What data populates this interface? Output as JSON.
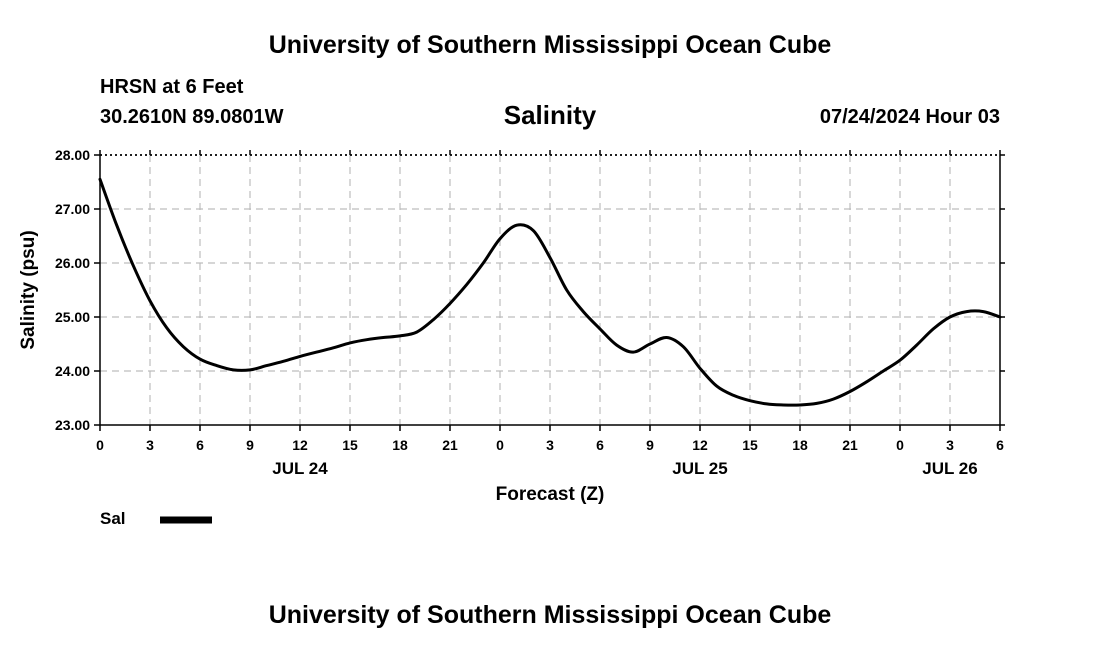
{
  "header": {
    "title": "University of Southern Mississippi Ocean Cube",
    "station": "HRSN at 6 Feet",
    "coords": "30.2610N  89.0801W",
    "datetime": "07/24/2024 Hour 03"
  },
  "footer": {
    "title": "University of Southern Mississippi Ocean Cube"
  },
  "legend": {
    "label": "Sal",
    "color": "#000000"
  },
  "chart_data": {
    "type": "line",
    "title": "Salinity",
    "xlabel": "Forecast (Z)",
    "ylabel": "Salinity (psu)",
    "ylim": [
      23.0,
      28.0
    ],
    "yticks": [
      "23.00",
      "24.00",
      "25.00",
      "26.00",
      "27.00",
      "28.00"
    ],
    "xlim": [
      0,
      54
    ],
    "xticks": [
      "0",
      "3",
      "6",
      "9",
      "12",
      "15",
      "18",
      "21",
      "0",
      "3",
      "6",
      "9",
      "12",
      "15",
      "18",
      "21",
      "0",
      "3",
      "6"
    ],
    "day_labels": [
      {
        "label": "JUL 24",
        "hour": 12
      },
      {
        "label": "JUL 25",
        "hour": 36
      },
      {
        "label": "JUL 26",
        "hour": 51
      }
    ],
    "grid": true,
    "series": [
      {
        "name": "Sal",
        "color": "#000000",
        "x": [
          0,
          1,
          2,
          3,
          4,
          5,
          6,
          7,
          8,
          9,
          10,
          11,
          12,
          13,
          14,
          15,
          16,
          17,
          18,
          19,
          20,
          21,
          22,
          23,
          24,
          25,
          26,
          27,
          28,
          29,
          30,
          31,
          32,
          33,
          34,
          35,
          36,
          37,
          38,
          39,
          40,
          41,
          42,
          43,
          44,
          45,
          46,
          47,
          48,
          49,
          50,
          51,
          52,
          53,
          54
        ],
        "y": [
          27.55,
          26.7,
          25.95,
          25.3,
          24.8,
          24.45,
          24.22,
          24.1,
          24.02,
          24.02,
          24.1,
          24.18,
          24.27,
          24.35,
          24.43,
          24.52,
          24.58,
          24.62,
          24.65,
          24.72,
          24.95,
          25.25,
          25.6,
          26.0,
          26.45,
          26.7,
          26.6,
          26.1,
          25.5,
          25.1,
          24.78,
          24.48,
          24.35,
          24.5,
          24.62,
          24.45,
          24.05,
          23.72,
          23.55,
          23.45,
          23.39,
          23.37,
          23.37,
          23.4,
          23.48,
          23.62,
          23.8,
          24.0,
          24.2,
          24.48,
          24.78,
          25.0,
          25.1,
          25.1,
          25.0
        ]
      }
    ]
  }
}
